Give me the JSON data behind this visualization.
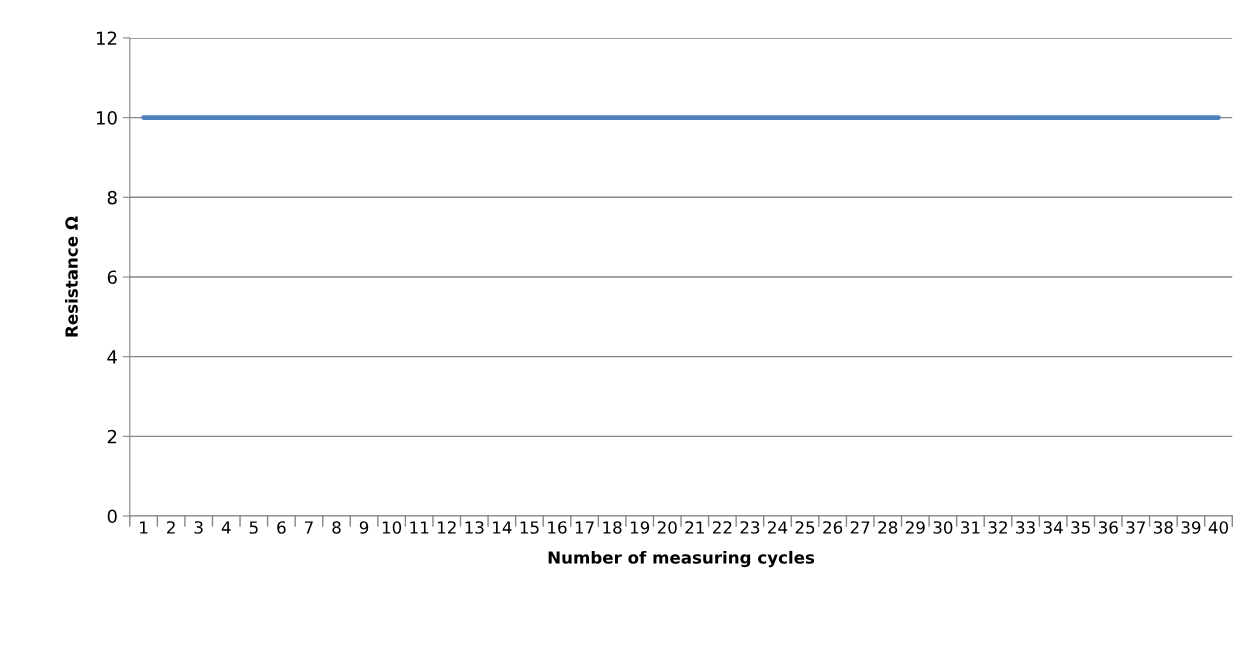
{
  "chart_data": {
    "type": "line",
    "xlabel": "Number of measuring cycles",
    "ylabel": "Resistance Ω",
    "categories": [
      "1",
      "2",
      "3",
      "4",
      "5",
      "6",
      "7",
      "8",
      "9",
      "10",
      "11",
      "12",
      "13",
      "14",
      "15",
      "16",
      "17",
      "18",
      "19",
      "20",
      "21",
      "22",
      "23",
      "24",
      "25",
      "26",
      "27",
      "28",
      "29",
      "30",
      "31",
      "32",
      "33",
      "34",
      "35",
      "36",
      "37",
      "38",
      "39",
      "40"
    ],
    "series": [
      {
        "color": "#4f81bd",
        "values": [
          10,
          10,
          10,
          10,
          10,
          10,
          10,
          10,
          10,
          10,
          10,
          10,
          10,
          10,
          10,
          10,
          10,
          10,
          10,
          10,
          10,
          10,
          10,
          10,
          10,
          10,
          10,
          10,
          10,
          10,
          10,
          10,
          10,
          10,
          10,
          10,
          10,
          10,
          10,
          10
        ]
      }
    ],
    "ylim": [
      0,
      12
    ],
    "yticks": [
      0,
      2,
      4,
      6,
      8,
      10,
      12
    ],
    "grid": "y",
    "marker": "none",
    "line_style": "solid"
  }
}
